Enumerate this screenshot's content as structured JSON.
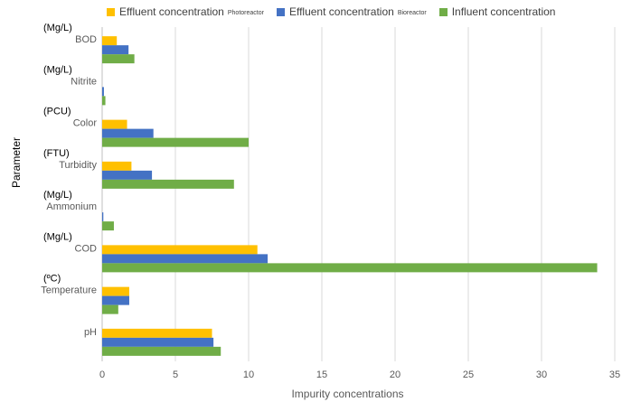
{
  "chart_data": {
    "type": "bar",
    "orientation": "horizontal",
    "xlabel": "Impurity concentrations",
    "ylabel": "Parameter",
    "xlim": [
      0,
      35
    ],
    "xticks": [
      0,
      5,
      10,
      15,
      20,
      25,
      30,
      35
    ],
    "grid": "vertical",
    "legend_position": "top",
    "categories": [
      {
        "name": "BOD",
        "unit": "(Mg/L)"
      },
      {
        "name": "Nitrite",
        "unit": "(Mg/L)"
      },
      {
        "name": "Color",
        "unit": "(PCU)"
      },
      {
        "name": "Turbidity",
        "unit": "(FTU)"
      },
      {
        "name": "Ammonium",
        "unit": "(Mg/L)"
      },
      {
        "name": "COD",
        "unit": "(Mg/L)"
      },
      {
        "name": "Temperature",
        "unit": "(ºC)"
      },
      {
        "name": "pH",
        "unit": ""
      }
    ],
    "series": [
      {
        "name": "Effluent concentration",
        "subscript": "Photoreactor",
        "color": "#FFC000",
        "values": [
          1.0,
          0.0,
          1.7,
          2.0,
          0.0,
          10.6,
          1.85,
          7.5
        ]
      },
      {
        "name": "Effluent concentration",
        "subscript": "Bioreactor",
        "color": "#4472C4",
        "values": [
          1.8,
          0.12,
          3.5,
          3.4,
          0.08,
          11.3,
          1.85,
          7.6
        ]
      },
      {
        "name": "Influent concentration",
        "subscript": "",
        "color": "#70AD47",
        "values": [
          2.2,
          0.22,
          10.0,
          9.0,
          0.8,
          33.8,
          1.1,
          8.1
        ]
      }
    ]
  }
}
